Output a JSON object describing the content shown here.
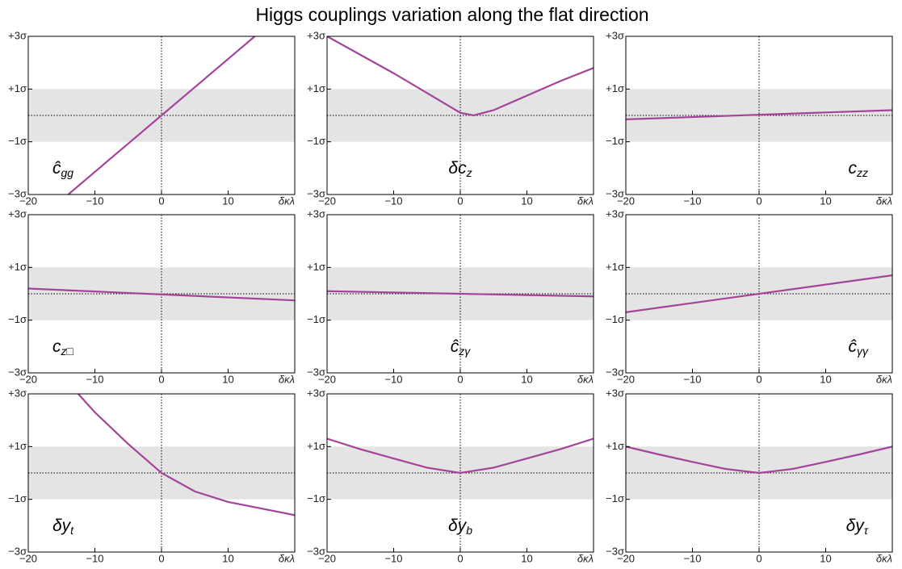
{
  "title": "Higgs couplings variation along the flat direction",
  "chart_data": [
    {
      "type": "line",
      "label": {
        "main": "ĉ",
        "sub": "gg"
      },
      "color": "#a3449a",
      "x": [
        -14,
        -10,
        -5,
        0,
        5,
        10,
        14
      ],
      "values": [
        -3,
        -2.14,
        -1.07,
        0,
        1.07,
        2.14,
        3
      ],
      "xlim": [
        -20,
        20
      ],
      "ylim": [
        -3,
        3
      ],
      "xticks": [
        {
          "value": -20,
          "label": "−20"
        },
        {
          "value": -10,
          "label": "−10"
        },
        0,
        10,
        {
          "value": 20,
          "label": "δκλ"
        }
      ],
      "yticks": [
        {
          "value": -3,
          "label": "−3σ"
        },
        {
          "value": -1,
          "label": "−1σ"
        },
        {
          "value": 1,
          "label": "+1σ"
        },
        {
          "value": 3,
          "label": "+3σ"
        }
      ]
    },
    {
      "type": "line",
      "label": {
        "main": "δc",
        "sub": "z"
      },
      "color": "#a3449a",
      "x": [
        -20,
        -15,
        -10,
        -5,
        0,
        2,
        5,
        10,
        15,
        20
      ],
      "values": [
        3,
        2.3,
        1.6,
        0.85,
        0.1,
        0,
        0.2,
        0.75,
        1.3,
        1.8
      ],
      "xlim": [
        -20,
        20
      ],
      "ylim": [
        -3,
        3
      ],
      "xticks": [
        {
          "value": -20,
          "label": "−20"
        },
        {
          "value": -10,
          "label": "−10"
        },
        0,
        10,
        {
          "value": 20,
          "label": "δκλ"
        }
      ],
      "yticks": [
        {
          "value": -3,
          "label": "−3σ"
        },
        {
          "value": -1,
          "label": "−1σ"
        },
        {
          "value": 1,
          "label": "+1σ"
        },
        {
          "value": 3,
          "label": "+3σ"
        }
      ]
    },
    {
      "type": "line",
      "label": {
        "main": "c",
        "sub": "zz"
      },
      "color": "#a3449a",
      "x": [
        -20,
        20
      ],
      "values": [
        -0.15,
        0.2
      ],
      "xlim": [
        -20,
        20
      ],
      "ylim": [
        -3,
        3
      ],
      "xticks": [
        {
          "value": -20,
          "label": "−20"
        },
        {
          "value": -10,
          "label": "−10"
        },
        0,
        10,
        {
          "value": 20,
          "label": "δκλ"
        }
      ],
      "yticks": [
        {
          "value": -3,
          "label": "−3σ"
        },
        {
          "value": -1,
          "label": "−1σ"
        },
        {
          "value": 1,
          "label": "+1σ"
        },
        {
          "value": 3,
          "label": "+3σ"
        }
      ]
    },
    {
      "type": "line",
      "label": {
        "main": "c",
        "sub": "z□"
      },
      "color": "#a3449a",
      "x": [
        -20,
        20
      ],
      "values": [
        0.2,
        -0.25
      ],
      "xlim": [
        -20,
        20
      ],
      "ylim": [
        -3,
        3
      ],
      "xticks": [
        {
          "value": -20,
          "label": "−20"
        },
        {
          "value": -10,
          "label": "−10"
        },
        0,
        10,
        {
          "value": 20,
          "label": "δκλ"
        }
      ],
      "yticks": [
        {
          "value": -3,
          "label": "−3σ"
        },
        {
          "value": -1,
          "label": "−1σ"
        },
        {
          "value": 1,
          "label": "+1σ"
        },
        {
          "value": 3,
          "label": "+3σ"
        }
      ]
    },
    {
      "type": "line",
      "label": {
        "main": "ĉ",
        "sub": "zγ"
      },
      "color": "#a3449a",
      "x": [
        -20,
        20
      ],
      "values": [
        0.1,
        -0.1
      ],
      "xlim": [
        -20,
        20
      ],
      "ylim": [
        -3,
        3
      ],
      "xticks": [
        {
          "value": -20,
          "label": "−20"
        },
        {
          "value": -10,
          "label": "−10"
        },
        0,
        10,
        {
          "value": 20,
          "label": "δκλ"
        }
      ],
      "yticks": [
        {
          "value": -3,
          "label": "−3σ"
        },
        {
          "value": -1,
          "label": "−1σ"
        },
        {
          "value": 1,
          "label": "+1σ"
        },
        {
          "value": 3,
          "label": "+3σ"
        }
      ]
    },
    {
      "type": "line",
      "label": {
        "main": "ĉ",
        "sub": "γγ"
      },
      "color": "#a3449a",
      "x": [
        -20,
        20
      ],
      "values": [
        -0.7,
        0.7
      ],
      "xlim": [
        -20,
        20
      ],
      "ylim": [
        -3,
        3
      ],
      "xticks": [
        {
          "value": -20,
          "label": "−20"
        },
        {
          "value": -10,
          "label": "−10"
        },
        0,
        10,
        {
          "value": 20,
          "label": "δκλ"
        }
      ],
      "yticks": [
        {
          "value": -3,
          "label": "−3σ"
        },
        {
          "value": -1,
          "label": "−1σ"
        },
        {
          "value": 1,
          "label": "+1σ"
        },
        {
          "value": 3,
          "label": "+3σ"
        }
      ]
    },
    {
      "type": "line",
      "label": {
        "main": "δy",
        "sub": "t"
      },
      "color": "#a3449a",
      "x": [
        -12.5,
        -10,
        -5,
        0,
        5,
        10,
        15,
        20
      ],
      "values": [
        3,
        2.3,
        1.1,
        0,
        -0.7,
        -1.1,
        -1.35,
        -1.6
      ],
      "xlim": [
        -20,
        20
      ],
      "ylim": [
        -3,
        3
      ],
      "xticks": [
        {
          "value": -20,
          "label": "−20"
        },
        {
          "value": -10,
          "label": "−10"
        },
        0,
        10,
        {
          "value": 20,
          "label": "δκλ"
        }
      ],
      "yticks": [
        {
          "value": -3,
          "label": "−3σ"
        },
        {
          "value": -1,
          "label": "−1σ"
        },
        {
          "value": 1,
          "label": "+1σ"
        },
        {
          "value": 3,
          "label": "+3σ"
        }
      ]
    },
    {
      "type": "line",
      "label": {
        "main": "δy",
        "sub": "b"
      },
      "color": "#a3449a",
      "x": [
        -20,
        -15,
        -10,
        -5,
        0,
        5,
        10,
        15,
        20
      ],
      "values": [
        1.3,
        0.9,
        0.55,
        0.2,
        0,
        0.2,
        0.55,
        0.9,
        1.3
      ],
      "xlim": [
        -20,
        20
      ],
      "ylim": [
        -3,
        3
      ],
      "xticks": [
        {
          "value": -20,
          "label": "−20"
        },
        {
          "value": -10,
          "label": "−10"
        },
        0,
        10,
        {
          "value": 20,
          "label": "δκλ"
        }
      ],
      "yticks": [
        {
          "value": -3,
          "label": "−3σ"
        },
        {
          "value": -1,
          "label": "−1σ"
        },
        {
          "value": 1,
          "label": "+1σ"
        },
        {
          "value": 3,
          "label": "+3σ"
        }
      ]
    },
    {
      "type": "line",
      "label": {
        "main": "δy",
        "sub": "τ"
      },
      "color": "#a3449a",
      "x": [
        -20,
        -15,
        -10,
        -5,
        0,
        5,
        10,
        15,
        20
      ],
      "values": [
        1.0,
        0.7,
        0.42,
        0.15,
        0,
        0.15,
        0.42,
        0.7,
        1.0
      ],
      "xlim": [
        -20,
        20
      ],
      "ylim": [
        -3,
        3
      ],
      "xticks": [
        {
          "value": -20,
          "label": "−20"
        },
        {
          "value": -10,
          "label": "−10"
        },
        0,
        10,
        {
          "value": 20,
          "label": "δκλ"
        }
      ],
      "yticks": [
        {
          "value": -3,
          "label": "−3σ"
        },
        {
          "value": -1,
          "label": "−1σ"
        },
        {
          "value": 1,
          "label": "+1σ"
        },
        {
          "value": 3,
          "label": "+3σ"
        }
      ]
    }
  ]
}
